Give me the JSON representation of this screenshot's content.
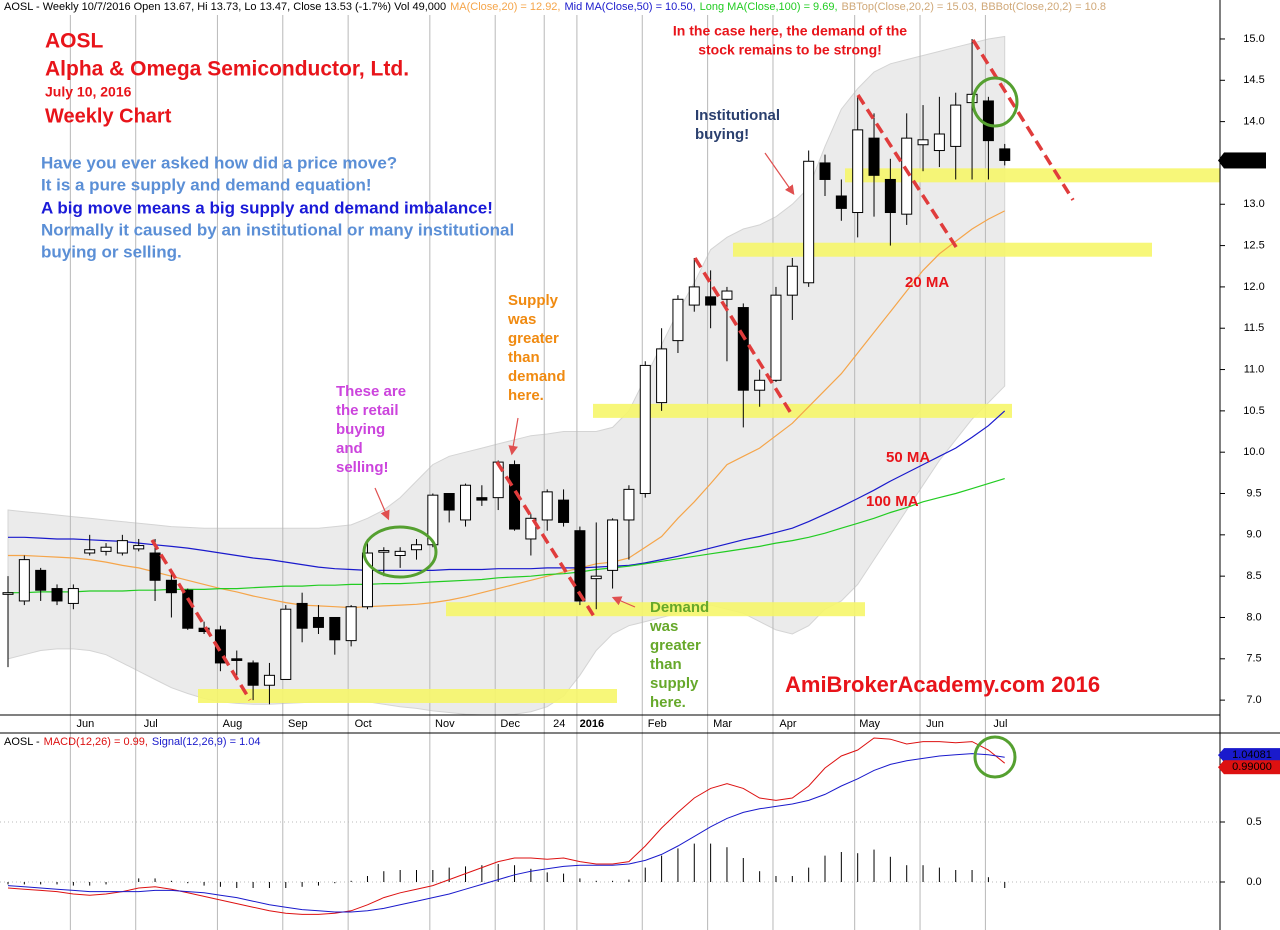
{
  "chart_data": [
    {
      "type": "candlestick",
      "title": "AOSL - Weekly 10/7/2016 Open 13.67, Hi 13.73, Lo 13.47, Close 13.53 (-1.7%) Vol 49,000",
      "categories": [
        null,
        null,
        null,
        null,
        "Jun",
        null,
        null,
        null,
        "Jul",
        null,
        null,
        null,
        null,
        "Aug",
        null,
        null,
        null,
        "Sep",
        null,
        null,
        null,
        "Oct",
        null,
        null,
        null,
        null,
        "Nov",
        null,
        null,
        null,
        "Dec",
        null,
        null,
        "24",
        null,
        "2016",
        null,
        null,
        null,
        "Feb",
        null,
        null,
        null,
        "Mar",
        null,
        null,
        null,
        "Apr",
        null,
        null,
        null,
        null,
        "May",
        null,
        null,
        null,
        "Jun",
        null,
        null,
        null,
        "Jul",
        null
      ],
      "open": [
        8.28,
        8.2,
        8.57,
        8.35,
        8.17,
        8.78,
        8.8,
        8.78,
        8.83,
        8.78,
        8.45,
        8.33,
        7.87,
        7.85,
        7.5,
        7.45,
        7.18,
        7.25,
        8.17,
        8.0,
        8.0,
        7.72,
        8.13,
        8.79,
        8.75,
        8.82,
        8.88,
        9.5,
        9.18,
        9.45,
        9.45,
        9.85,
        8.95,
        9.18,
        9.42,
        9.05,
        8.47,
        8.57,
        9.18,
        9.5,
        10.6,
        11.35,
        11.78,
        11.88,
        11.85,
        11.75,
        10.75,
        10.87,
        11.9,
        12.05,
        13.5,
        13.1,
        12.9,
        13.8,
        13.3,
        12.88,
        13.72,
        13.65,
        13.7,
        14.23,
        14.25,
        13.67
      ],
      "high": [
        8.5,
        8.75,
        8.6,
        8.4,
        8.4,
        9.0,
        8.9,
        9.0,
        8.95,
        8.95,
        8.55,
        8.35,
        7.95,
        7.9,
        7.6,
        7.48,
        7.45,
        8.15,
        8.3,
        8.15,
        8.0,
        8.15,
        8.95,
        8.85,
        8.85,
        8.95,
        9.5,
        9.5,
        9.62,
        9.6,
        9.9,
        9.9,
        9.25,
        9.55,
        9.55,
        9.1,
        9.15,
        9.2,
        9.6,
        11.1,
        11.5,
        11.9,
        12.35,
        12.2,
        12.0,
        11.8,
        11.0,
        12.0,
        12.35,
        13.65,
        13.6,
        13.3,
        14.3,
        14.1,
        13.55,
        14.1,
        14.2,
        14.3,
        14.35,
        15.0,
        14.3,
        13.73
      ],
      "low": [
        7.4,
        8.15,
        8.2,
        8.15,
        8.1,
        8.75,
        8.75,
        8.75,
        8.8,
        8.2,
        8.0,
        7.85,
        7.8,
        7.35,
        7.3,
        7.0,
        6.95,
        7.25,
        7.7,
        7.8,
        7.55,
        7.65,
        8.1,
        8.5,
        8.6,
        8.7,
        8.85,
        9.15,
        9.1,
        9.35,
        9.3,
        9.05,
        8.75,
        9.05,
        9.1,
        8.15,
        8.1,
        8.35,
        8.7,
        9.45,
        10.5,
        11.2,
        11.7,
        11.5,
        11.1,
        10.3,
        10.55,
        10.85,
        11.6,
        12.0,
        13.1,
        12.8,
        12.6,
        12.85,
        12.5,
        12.75,
        13.4,
        13.45,
        13.3,
        13.3,
        13.3,
        13.47
      ],
      "close": [
        8.3,
        8.7,
        8.33,
        8.2,
        8.35,
        8.82,
        8.85,
        8.93,
        8.87,
        8.45,
        8.3,
        7.87,
        7.83,
        7.45,
        7.48,
        7.18,
        7.3,
        8.1,
        7.87,
        7.88,
        7.73,
        8.13,
        8.78,
        8.81,
        8.8,
        8.88,
        9.48,
        9.3,
        9.6,
        9.42,
        9.88,
        9.07,
        9.2,
        9.52,
        9.15,
        8.2,
        8.5,
        9.18,
        9.55,
        11.05,
        11.25,
        11.85,
        12.0,
        11.78,
        11.95,
        10.75,
        10.87,
        11.9,
        12.25,
        13.52,
        13.3,
        12.95,
        13.9,
        13.35,
        12.9,
        13.8,
        13.78,
        13.85,
        14.2,
        14.33,
        13.77,
        13.53
      ],
      "series": [
        {
          "name": "MA(Close,20) = 12.92,",
          "color": "#f5a54a",
          "values": [
            8.75,
            8.75,
            8.74,
            8.73,
            8.72,
            8.7,
            8.67,
            8.63,
            8.6,
            8.55,
            8.5,
            8.45,
            8.4,
            8.35,
            8.31,
            8.26,
            8.22,
            8.18,
            8.15,
            8.14,
            8.13,
            8.12,
            8.13,
            8.14,
            8.15,
            8.16,
            8.18,
            8.21,
            8.25,
            8.3,
            8.35,
            8.4,
            8.45,
            8.5,
            8.55,
            8.6,
            8.65,
            8.67,
            8.72,
            8.85,
            8.98,
            9.2,
            9.4,
            9.62,
            9.85,
            9.95,
            10.05,
            10.2,
            10.35,
            10.55,
            10.75,
            10.95,
            11.2,
            11.45,
            11.7,
            11.95,
            12.2,
            12.4,
            12.55,
            12.7,
            12.82,
            12.92
          ]
        },
        {
          "name": "Mid MA(Close,50) = 10.50,",
          "color": "#1a1acc",
          "values": [
            8.97,
            8.97,
            8.96,
            8.95,
            8.95,
            8.94,
            8.93,
            8.92,
            8.9,
            8.88,
            8.86,
            8.84,
            8.81,
            8.78,
            8.75,
            8.72,
            8.7,
            8.67,
            8.64,
            8.61,
            8.59,
            8.58,
            8.57,
            8.57,
            8.57,
            8.57,
            8.57,
            8.58,
            8.58,
            8.58,
            8.59,
            8.59,
            8.59,
            8.6,
            8.6,
            8.6,
            8.61,
            8.62,
            8.63,
            8.66,
            8.7,
            8.74,
            8.79,
            8.84,
            8.89,
            8.94,
            8.98,
            9.03,
            9.08,
            9.16,
            9.25,
            9.34,
            9.44,
            9.54,
            9.65,
            9.75,
            9.85,
            9.95,
            10.05,
            10.18,
            10.32,
            10.5
          ]
        },
        {
          "name": "Long MA(Close,100) = 9.69,",
          "color": "#22cc22",
          "values": [
            8.3,
            8.3,
            8.31,
            8.31,
            8.31,
            8.32,
            8.32,
            8.32,
            8.33,
            8.33,
            8.34,
            8.34,
            8.34,
            8.35,
            8.35,
            8.36,
            8.37,
            8.38,
            8.38,
            8.39,
            8.39,
            8.4,
            8.4,
            8.41,
            8.41,
            8.42,
            8.43,
            8.44,
            8.45,
            8.46,
            8.48,
            8.49,
            8.5,
            8.52,
            8.53,
            8.55,
            8.58,
            8.6,
            8.62,
            8.65,
            8.68,
            8.71,
            8.74,
            8.77,
            8.8,
            8.83,
            8.86,
            8.9,
            8.93,
            8.97,
            9.02,
            9.08,
            9.14,
            9.2,
            9.27,
            9.33,
            9.4,
            9.45,
            9.5,
            9.56,
            9.62,
            9.68
          ]
        }
      ],
      "band": {
        "color": "#ebebeb",
        "upper": {
          "name": "BBTop(Close,20,2) = 15.03,",
          "values": [
            9.3,
            9.28,
            9.26,
            9.24,
            9.22,
            9.2,
            9.18,
            9.16,
            9.14,
            9.12,
            9.1,
            9.09,
            9.08,
            9.08,
            9.08,
            9.08,
            9.08,
            9.08,
            9.08,
            9.08,
            9.1,
            9.12,
            9.2,
            9.3,
            9.45,
            9.65,
            9.85,
            9.95,
            10.0,
            10.05,
            10.1,
            10.15,
            10.2,
            10.22,
            10.25,
            10.25,
            10.25,
            10.3,
            10.5,
            10.9,
            11.3,
            11.7,
            12.05,
            12.45,
            12.6,
            12.7,
            12.75,
            12.85,
            13.0,
            13.2,
            13.7,
            14.15,
            14.4,
            14.6,
            14.7,
            14.75,
            14.8,
            14.85,
            14.9,
            14.95,
            15.0,
            15.03
          ]
        },
        "lower": {
          "name": "BBBot(Close,20,2) = 10.8",
          "values": [
            7.5,
            7.55,
            7.6,
            7.62,
            7.62,
            7.6,
            7.55,
            7.45,
            7.35,
            7.25,
            7.15,
            7.08,
            7.02,
            6.98,
            6.96,
            6.95,
            6.95,
            6.96,
            6.97,
            6.98,
            6.98,
            6.99,
            6.98,
            6.95,
            6.92,
            6.9,
            6.87,
            6.85,
            6.83,
            6.82,
            6.82,
            6.83,
            6.86,
            6.92,
            7.05,
            7.3,
            7.6,
            7.8,
            7.9,
            7.95,
            8.0,
            8.05,
            8.1,
            8.15,
            8.1,
            8.05,
            7.95,
            7.85,
            7.8,
            7.9,
            8.1,
            8.2,
            8.4,
            8.7,
            9.0,
            9.3,
            9.6,
            9.9,
            10.15,
            10.4,
            10.6,
            10.8
          ]
        }
      },
      "zones": [
        13.35,
        12.45,
        10.5,
        8.1,
        7.05
      ],
      "zone_color": "#f6f66a",
      "last": 13.53,
      "ylim": [
        6.82,
        15.29
      ],
      "yticks": [
        {
          "value": 7,
          "label": "7.0"
        },
        7.5,
        {
          "value": 8,
          "label": "8.0"
        },
        8.5,
        {
          "value": 9,
          "label": "9.0"
        },
        9.5,
        {
          "value": 10,
          "label": "10.0"
        },
        10.5,
        {
          "value": 11,
          "label": "11.0"
        },
        11.5,
        {
          "value": 12,
          "label": "12.0"
        },
        12.5,
        {
          "value": 13,
          "label": "13.0"
        },
        13.5,
        {
          "value": 14,
          "label": "14.0"
        },
        14.5,
        {
          "value": 15,
          "label": "15.0"
        }
      ],
      "grid": true
    },
    {
      "type": "macd",
      "title": "AOSL -",
      "series": [
        {
          "name": "MACD(12,26) = 0.99,",
          "color": "#dd1111",
          "values": [
            -0.05,
            -0.06,
            -0.07,
            -0.08,
            -0.1,
            -0.11,
            -0.1,
            -0.08,
            -0.05,
            -0.04,
            -0.06,
            -0.09,
            -0.12,
            -0.15,
            -0.18,
            -0.21,
            -0.24,
            -0.26,
            -0.27,
            -0.27,
            -0.26,
            -0.24,
            -0.19,
            -0.13,
            -0.09,
            -0.06,
            -0.03,
            0.02,
            0.07,
            0.12,
            0.17,
            0.2,
            0.2,
            0.19,
            0.2,
            0.17,
            0.15,
            0.15,
            0.17,
            0.3,
            0.45,
            0.58,
            0.7,
            0.78,
            0.82,
            0.78,
            0.7,
            0.68,
            0.7,
            0.8,
            0.95,
            1.05,
            1.1,
            1.2,
            1.19,
            1.15,
            1.17,
            1.17,
            1.16,
            1.17,
            1.1,
            0.99
          ]
        },
        {
          "name": "Signal(12,26,9) = 1.04",
          "color": "#1a1acc",
          "values": [
            -0.03,
            -0.04,
            -0.05,
            -0.06,
            -0.07,
            -0.08,
            -0.08,
            -0.08,
            -0.08,
            -0.07,
            -0.07,
            -0.08,
            -0.09,
            -0.11,
            -0.13,
            -0.16,
            -0.19,
            -0.21,
            -0.23,
            -0.24,
            -0.25,
            -0.25,
            -0.24,
            -0.22,
            -0.19,
            -0.16,
            -0.13,
            -0.1,
            -0.06,
            -0.02,
            0.02,
            0.06,
            0.09,
            0.11,
            0.13,
            0.14,
            0.14,
            0.14,
            0.15,
            0.18,
            0.23,
            0.3,
            0.38,
            0.46,
            0.53,
            0.58,
            0.61,
            0.63,
            0.65,
            0.68,
            0.73,
            0.8,
            0.86,
            0.93,
            0.98,
            1.01,
            1.03,
            1.05,
            1.06,
            1.07,
            1.06,
            1.04
          ]
        }
      ],
      "histogram": {
        "color": "#000000",
        "values": [
          -0.02,
          -0.02,
          -0.02,
          -0.02,
          -0.03,
          -0.03,
          -0.02,
          0.0,
          0.03,
          0.03,
          0.01,
          -0.01,
          -0.03,
          -0.04,
          -0.05,
          -0.05,
          -0.05,
          -0.05,
          -0.04,
          -0.03,
          -0.01,
          0.01,
          0.05,
          0.09,
          0.1,
          0.1,
          0.1,
          0.12,
          0.13,
          0.14,
          0.15,
          0.14,
          0.11,
          0.08,
          0.07,
          0.03,
          0.01,
          0.01,
          0.02,
          0.12,
          0.22,
          0.28,
          0.32,
          0.32,
          0.29,
          0.2,
          0.09,
          0.05,
          0.05,
          0.12,
          0.22,
          0.25,
          0.24,
          0.27,
          0.21,
          0.14,
          0.14,
          0.12,
          0.1,
          0.1,
          0.04,
          -0.05
        ]
      },
      "tags": [
        {
          "value": 1.04081,
          "label": "1.04081",
          "color": "#1a1acc"
        },
        {
          "value": 0.99,
          "label": "0.99000",
          "color": "#dd1111"
        }
      ],
      "ylim": [
        -0.4,
        1.225
      ],
      "yticks": [
        {
          "value": 0,
          "label": "0.0"
        },
        0.5
      ],
      "grid": true
    }
  ],
  "annotations": [
    {
      "lines": [
        "AOSL"
      ],
      "color": "#e8141a"
    },
    {
      "lines": [
        "Alpha & Omega Semiconductor, Ltd."
      ],
      "color": "#e8141a"
    },
    {
      "lines": [
        "July 10, 2016"
      ],
      "color": "#e8141a"
    },
    {
      "lines": [
        "Weekly Chart"
      ],
      "color": "#e8141a"
    },
    {
      "lines": [
        "Have you ever asked how did a price move?",
        "It is a pure supply and demand equation!"
      ],
      "color": "#5b8fd6"
    },
    {
      "lines": [
        "A big move means a big supply and demand imbalance!"
      ],
      "color": "#1a1ad8"
    },
    {
      "lines": [
        "Normally it caused by an institutional or many institutional",
        "buying or selling."
      ],
      "color": "#5b8fd6"
    },
    {
      "lines": [
        "In the case here, the demand of the",
        "stock remains to be strong!"
      ],
      "color": "#e8141a"
    },
    {
      "lines": [
        "Institutional",
        "buying!"
      ],
      "color": "#2a3f6e"
    },
    {
      "lines": [
        "Supply",
        "was",
        "greater",
        "than",
        "demand",
        "here."
      ],
      "color": "#f08a10"
    },
    {
      "lines": [
        "These are",
        "the retail",
        "buying",
        "and",
        "selling!"
      ],
      "color": "#cc44dd"
    },
    {
      "lines": [
        "Demand",
        "was",
        "greater",
        "than",
        "supply",
        "here."
      ],
      "color": "#66a82a"
    },
    {
      "lines": [
        "20 MA"
      ],
      "color": "#e8141a"
    },
    {
      "lines": [
        "50 MA"
      ],
      "color": "#e8141a"
    },
    {
      "lines": [
        "100 MA"
      ],
      "color": "#e8141a"
    },
    {
      "lines": [
        "AmiBrokerAcademy.com  2016"
      ],
      "color": "#e8141a"
    }
  ]
}
